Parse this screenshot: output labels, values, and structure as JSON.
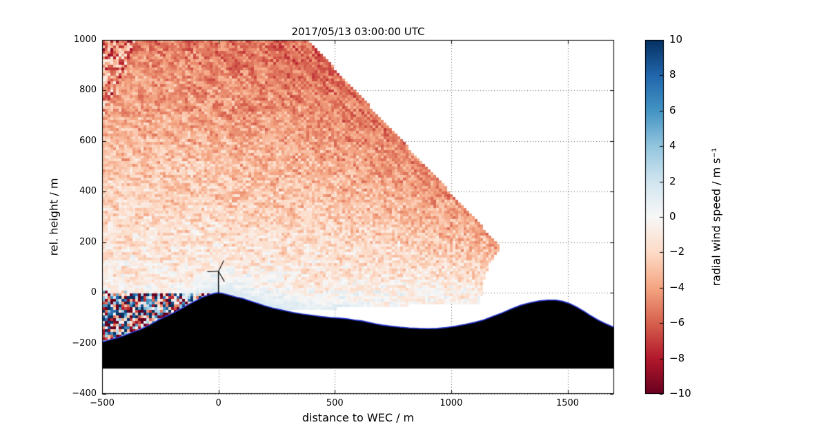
{
  "chart_data": {
    "type": "heatmap",
    "title": "2017/05/13 03:00:00 UTC",
    "xlabel": "distance to WEC / m",
    "ylabel": "rel. height / m",
    "xlim": [
      -500,
      1700
    ],
    "ylim": [
      -400,
      1000
    ],
    "grid": true,
    "xticks": {
      "values": [
        -500,
        0,
        500,
        1000,
        1500
      ],
      "labels": [
        "−500",
        "0",
        "500",
        "1000",
        "1500"
      ]
    },
    "yticks": {
      "values": [
        -400,
        -200,
        0,
        200,
        400,
        600,
        800,
        1000
      ],
      "labels": [
        "−400",
        "−200",
        "0",
        "200",
        "400",
        "600",
        "800",
        "1000"
      ]
    },
    "colorbar": {
      "label": "radial wind speed / m s⁻¹",
      "vmin": -10,
      "vmax": 10,
      "tick_values": [
        10,
        8,
        6,
        4,
        2,
        0,
        -2,
        -4,
        -6,
        -8,
        -10
      ],
      "tick_labels": [
        "10",
        "8",
        "6",
        "4",
        "2",
        "0",
        "−2",
        "−4",
        "−6",
        "−8",
        "−10"
      ],
      "colormap": "RdBu",
      "colors": [
        "#67001f",
        "#b2182b",
        "#d6604d",
        "#f4a582",
        "#fddbc7",
        "#f7f7f7",
        "#d1e5f0",
        "#92c5de",
        "#4393c3",
        "#2166ac",
        "#053061"
      ]
    },
    "field": {
      "description": "Lidar RHI fan scan of radial wind speed: mostly negative (−3 to −6 m/s) red values aloft, near-zero pale values close to the terrain and along the low-elevation beams, and strong random red/blue speckle in the line-of-sight shadow behind the hill on the left",
      "scan_origin": {
        "x": 1430,
        "y": -30
      },
      "min_range_m": 300,
      "elevation_min_deg": -2.0,
      "elevation_max_deg": 44.6,
      "value_base": -0.4,
      "value_span": -5.6,
      "typical_value_aloft": -5.0,
      "typical_value_near_terrain": -0.5
    },
    "terrain": {
      "base_m": -300,
      "fill": "#000000",
      "outline": "#2233cc",
      "profile": [
        [
          -500,
          -195
        ],
        [
          -460,
          -184
        ],
        [
          -430,
          -177
        ],
        [
          -400,
          -167
        ],
        [
          -370,
          -156
        ],
        [
          -340,
          -147
        ],
        [
          -310,
          -134
        ],
        [
          -280,
          -119
        ],
        [
          -250,
          -104
        ],
        [
          -220,
          -91
        ],
        [
          -190,
          -78
        ],
        [
          -160,
          -63
        ],
        [
          -130,
          -47
        ],
        [
          -100,
          -33
        ],
        [
          -70,
          -18
        ],
        [
          -40,
          -8
        ],
        [
          -15,
          -2
        ],
        [
          0,
          0
        ],
        [
          20,
          -3
        ],
        [
          45,
          -9
        ],
        [
          75,
          -17
        ],
        [
          105,
          -23
        ],
        [
          135,
          -32
        ],
        [
          165,
          -41
        ],
        [
          200,
          -52
        ],
        [
          240,
          -62
        ],
        [
          280,
          -70
        ],
        [
          320,
          -78
        ],
        [
          360,
          -84
        ],
        [
          400,
          -89
        ],
        [
          440,
          -94
        ],
        [
          480,
          -98
        ],
        [
          520,
          -100
        ],
        [
          555,
          -103
        ],
        [
          585,
          -108
        ],
        [
          615,
          -111
        ],
        [
          645,
          -117
        ],
        [
          675,
          -123
        ],
        [
          705,
          -128
        ],
        [
          740,
          -132
        ],
        [
          780,
          -136
        ],
        [
          820,
          -139
        ],
        [
          860,
          -141
        ],
        [
          900,
          -142
        ],
        [
          940,
          -141
        ],
        [
          980,
          -137
        ],
        [
          1020,
          -132
        ],
        [
          1060,
          -125
        ],
        [
          1100,
          -117
        ],
        [
          1140,
          -107
        ],
        [
          1180,
          -93
        ],
        [
          1220,
          -79
        ],
        [
          1260,
          -63
        ],
        [
          1300,
          -49
        ],
        [
          1340,
          -39
        ],
        [
          1380,
          -32
        ],
        [
          1415,
          -29
        ],
        [
          1450,
          -29
        ],
        [
          1480,
          -34
        ],
        [
          1510,
          -43
        ],
        [
          1540,
          -57
        ],
        [
          1570,
          -73
        ],
        [
          1600,
          -91
        ],
        [
          1630,
          -107
        ],
        [
          1660,
          -121
        ],
        [
          1700,
          -137
        ]
      ]
    },
    "turbine": {
      "x": 0,
      "base_height_m": 0,
      "hub_height_m": 85,
      "rotor_len_m": 48,
      "blade_angles_deg": [
        62,
        182,
        302
      ],
      "color": "#000000"
    }
  }
}
